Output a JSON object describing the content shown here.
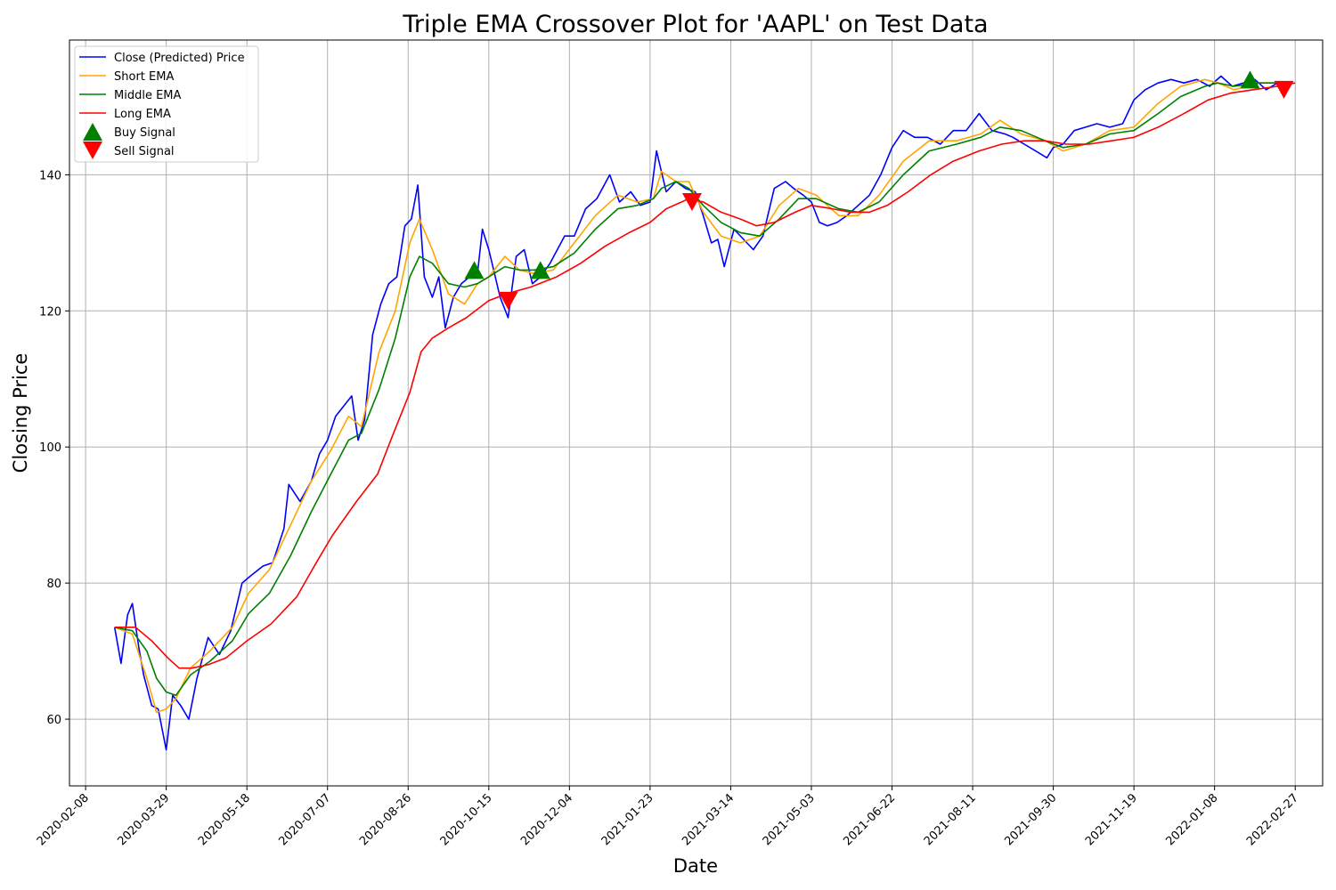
{
  "chart_data": {
    "type": "line",
    "title": "Triple EMA Crossover Plot for 'AAPL' on Test Data",
    "xlabel": "Date",
    "ylabel": "Closing Price",
    "x_ticks": [
      "2020-02-08",
      "2020-03-29",
      "2020-05-18",
      "2020-07-07",
      "2020-08-26",
      "2020-10-15",
      "2020-12-04",
      "2021-01-23",
      "2021-03-14",
      "2021-05-03",
      "2021-06-22",
      "2021-08-11",
      "2021-09-30",
      "2021-11-19",
      "2022-01-08",
      "2022-02-27"
    ],
    "y_ticks": [
      60,
      80,
      100,
      120,
      140
    ],
    "xlim": [
      "2020-01-29",
      "2022-03-16"
    ],
    "ylim": [
      50.2,
      159.8
    ],
    "grid": true,
    "legend_position": "top-left",
    "colors": {
      "close": "#0000ff",
      "short": "#ffa500",
      "middle": "#008000",
      "long": "#ff0000",
      "buy": "#008000",
      "sell": "#ff0000"
    },
    "series": [
      {
        "name": "Close (Predicted) Price",
        "x": [
          "2020-02-26",
          "2020-03-01",
          "2020-03-05",
          "2020-03-08",
          "2020-03-12",
          "2020-03-15",
          "2020-03-20",
          "2020-03-24",
          "2020-03-29",
          "2020-04-02",
          "2020-04-07",
          "2020-04-12",
          "2020-04-17",
          "2020-04-24",
          "2020-05-01",
          "2020-05-08",
          "2020-05-15",
          "2020-05-20",
          "2020-05-28",
          "2020-06-03",
          "2020-06-10",
          "2020-06-13",
          "2020-06-20",
          "2020-06-27",
          "2020-07-02",
          "2020-07-07",
          "2020-07-12",
          "2020-07-17",
          "2020-07-22",
          "2020-07-26",
          "2020-07-30",
          "2020-08-04",
          "2020-08-09",
          "2020-08-14",
          "2020-08-19",
          "2020-08-24",
          "2020-08-28",
          "2020-09-01",
          "2020-09-05",
          "2020-09-10",
          "2020-09-14",
          "2020-09-18",
          "2020-09-23",
          "2020-09-28",
          "2020-10-03",
          "2020-10-08",
          "2020-10-11",
          "2020-10-15",
          "2020-10-19",
          "2020-10-22",
          "2020-10-27",
          "2020-11-01",
          "2020-11-06",
          "2020-11-11",
          "2020-11-16",
          "2020-11-22",
          "2020-12-01",
          "2020-12-07",
          "2020-12-14",
          "2020-12-21",
          "2020-12-29",
          "2021-01-04",
          "2021-01-11",
          "2021-01-17",
          "2021-01-23",
          "2021-01-27",
          "2021-02-02",
          "2021-02-08",
          "2021-02-14",
          "2021-02-20",
          "2021-02-25",
          "2021-03-02",
          "2021-03-06",
          "2021-03-10",
          "2021-03-16",
          "2021-03-22",
          "2021-03-28",
          "2021-04-03",
          "2021-04-10",
          "2021-04-17",
          "2021-04-22",
          "2021-04-28",
          "2021-05-03",
          "2021-05-08",
          "2021-05-13",
          "2021-05-19",
          "2021-05-25",
          "2021-06-01",
          "2021-06-08",
          "2021-06-15",
          "2021-06-22",
          "2021-06-29",
          "2021-07-06",
          "2021-07-14",
          "2021-07-22",
          "2021-07-30",
          "2021-08-07",
          "2021-08-15",
          "2021-08-23",
          "2021-08-31",
          "2021-09-05",
          "2021-09-12",
          "2021-09-19",
          "2021-09-26",
          "2021-09-30",
          "2021-10-06",
          "2021-10-13",
          "2021-10-20",
          "2021-10-27",
          "2021-11-04",
          "2021-11-12",
          "2021-11-19",
          "2021-11-26",
          "2021-12-04",
          "2021-12-12",
          "2021-12-20",
          "2021-12-28",
          "2022-01-05",
          "2022-01-12",
          "2022-01-19",
          "2022-01-26",
          "2022-02-02",
          "2022-02-09",
          "2022-02-16",
          "2022-02-21",
          "2022-02-25"
        ],
        "values": [
          73.5,
          68.2,
          75.3,
          77.0,
          70.5,
          66.5,
          62.0,
          61.5,
          55.5,
          63.5,
          62.0,
          60.0,
          66.0,
          72.0,
          69.5,
          73.0,
          80.0,
          81.0,
          82.5,
          83.0,
          88.0,
          94.5,
          92.0,
          95.0,
          99.0,
          101.0,
          104.5,
          106.0,
          107.5,
          101.0,
          104.0,
          116.5,
          121.0,
          124.0,
          125.0,
          132.5,
          133.5,
          138.5,
          125.0,
          122.0,
          125.0,
          117.5,
          122.0,
          124.0,
          125.0,
          125.5,
          132.0,
          129.0,
          125.0,
          122.0,
          119.0,
          128.0,
          129.0,
          124.0,
          125.0,
          127.0,
          131.0,
          131.0,
          135.0,
          136.5,
          140.0,
          136.0,
          137.5,
          135.5,
          136.0,
          143.5,
          137.5,
          139.0,
          138.0,
          137.5,
          134.0,
          130.0,
          130.5,
          126.5,
          132.0,
          130.5,
          129.0,
          131.0,
          138.0,
          139.0,
          138.0,
          137.0,
          136.0,
          133.0,
          132.5,
          133.0,
          134.0,
          135.5,
          137.0,
          140.0,
          144.0,
          146.5,
          145.5,
          145.5,
          144.5,
          146.5,
          146.5,
          149.0,
          146.5,
          146.0,
          145.5,
          144.5,
          143.5,
          142.5,
          144.0,
          144.5,
          146.5,
          147.0,
          147.5,
          147.0,
          147.5,
          151.0,
          152.5,
          153.5,
          154.0,
          153.5,
          154.0,
          153.0,
          154.5,
          153.0,
          153.5,
          154.0,
          152.5,
          153.5,
          152.0,
          153.5
        ]
      },
      {
        "name": "Short EMA",
        "x": [
          "2020-02-26",
          "2020-03-08",
          "2020-03-17",
          "2020-03-23",
          "2020-03-29",
          "2020-04-04",
          "2020-04-13",
          "2020-04-25",
          "2020-05-09",
          "2020-05-19",
          "2020-06-01",
          "2020-06-14",
          "2020-06-27",
          "2020-07-09",
          "2020-07-20",
          "2020-07-28",
          "2020-08-08",
          "2020-08-18",
          "2020-08-27",
          "2020-09-02",
          "2020-09-10",
          "2020-09-20",
          "2020-09-30",
          "2020-10-08",
          "2020-10-15",
          "2020-10-25",
          "2020-11-03",
          "2020-11-12",
          "2020-11-24",
          "2020-12-07",
          "2020-12-20",
          "2021-01-03",
          "2021-01-15",
          "2021-01-25",
          "2021-01-30",
          "2021-02-08",
          "2021-02-16",
          "2021-02-25",
          "2021-03-08",
          "2021-03-20",
          "2021-04-01",
          "2021-04-13",
          "2021-04-25",
          "2021-05-06",
          "2021-05-20",
          "2021-06-01",
          "2021-06-14",
          "2021-06-29",
          "2021-07-15",
          "2021-08-01",
          "2021-08-16",
          "2021-08-28",
          "2021-09-10",
          "2021-09-25",
          "2021-10-06",
          "2021-10-20",
          "2021-11-04",
          "2021-11-19",
          "2021-12-04",
          "2021-12-18",
          "2022-01-02",
          "2022-01-10",
          "2022-01-20",
          "2022-02-05",
          "2022-02-25"
        ],
        "values": [
          73.5,
          72.5,
          66.0,
          61.0,
          61.5,
          63.0,
          67.5,
          70.0,
          73.5,
          78.5,
          82.0,
          88.5,
          95.0,
          99.5,
          104.5,
          103.0,
          114.0,
          120.0,
          130.0,
          133.5,
          129.0,
          122.5,
          121.0,
          124.0,
          125.0,
          128.0,
          126.0,
          125.5,
          126.0,
          130.0,
          134.0,
          137.0,
          136.0,
          136.5,
          140.5,
          139.0,
          139.0,
          134.5,
          131.0,
          130.0,
          131.0,
          135.5,
          138.0,
          137.0,
          134.0,
          134.0,
          137.0,
          142.0,
          145.0,
          145.0,
          146.0,
          148.0,
          146.0,
          145.0,
          143.5,
          144.5,
          146.5,
          147.0,
          150.5,
          153.0,
          154.0,
          153.5,
          152.5,
          153.5,
          153.5
        ]
      },
      {
        "name": "Middle EMA",
        "x": [
          "2020-02-26",
          "2020-03-08",
          "2020-03-17",
          "2020-03-23",
          "2020-03-29",
          "2020-04-04",
          "2020-04-13",
          "2020-04-25",
          "2020-05-09",
          "2020-05-19",
          "2020-06-01",
          "2020-06-14",
          "2020-06-27",
          "2020-07-09",
          "2020-07-20",
          "2020-07-28",
          "2020-08-08",
          "2020-08-18",
          "2020-08-27",
          "2020-09-02",
          "2020-09-10",
          "2020-09-20",
          "2020-09-30",
          "2020-10-08",
          "2020-10-15",
          "2020-10-25",
          "2020-11-03",
          "2020-11-12",
          "2020-11-24",
          "2020-12-07",
          "2020-12-20",
          "2021-01-03",
          "2021-01-15",
          "2021-01-25",
          "2021-01-30",
          "2021-02-08",
          "2021-02-16",
          "2021-02-25",
          "2021-03-08",
          "2021-03-20",
          "2021-04-01",
          "2021-04-13",
          "2021-04-25",
          "2021-05-06",
          "2021-05-20",
          "2021-06-01",
          "2021-06-14",
          "2021-06-29",
          "2021-07-15",
          "2021-08-01",
          "2021-08-16",
          "2021-08-28",
          "2021-09-10",
          "2021-09-25",
          "2021-10-06",
          "2021-10-20",
          "2021-11-04",
          "2021-11-19",
          "2021-12-04",
          "2021-12-18",
          "2022-01-02",
          "2022-01-10",
          "2022-01-20",
          "2022-02-05",
          "2022-02-25"
        ],
        "values": [
          73.5,
          73.0,
          70.0,
          66.0,
          64.0,
          63.5,
          66.5,
          68.5,
          71.5,
          75.5,
          78.5,
          84.0,
          90.5,
          96.0,
          101.0,
          102.0,
          108.5,
          116.0,
          125.0,
          128.0,
          127.0,
          124.0,
          123.5,
          124.0,
          125.0,
          126.5,
          126.0,
          126.0,
          126.5,
          128.5,
          132.0,
          135.0,
          135.5,
          136.5,
          138.0,
          139.0,
          138.0,
          135.5,
          133.0,
          131.5,
          131.0,
          133.5,
          136.5,
          136.5,
          135.0,
          134.5,
          136.0,
          140.0,
          143.5,
          144.5,
          145.5,
          147.0,
          146.5,
          145.0,
          144.0,
          144.5,
          146.0,
          146.5,
          149.0,
          151.5,
          153.0,
          153.5,
          153.0,
          153.5,
          153.5
        ]
      },
      {
        "name": "Long EMA",
        "x": [
          "2020-02-26",
          "2020-03-10",
          "2020-03-20",
          "2020-03-30",
          "2020-04-06",
          "2020-04-14",
          "2020-04-24",
          "2020-05-05",
          "2020-05-18",
          "2020-06-02",
          "2020-06-18",
          "2020-06-30",
          "2020-07-10",
          "2020-07-25",
          "2020-08-07",
          "2020-08-16",
          "2020-08-27",
          "2020-09-03",
          "2020-09-10",
          "2020-09-20",
          "2020-10-01",
          "2020-10-15",
          "2020-10-26",
          "2020-11-10",
          "2020-11-26",
          "2020-12-11",
          "2020-12-26",
          "2021-01-10",
          "2021-01-23",
          "2021-02-02",
          "2021-02-16",
          "2021-02-25",
          "2021-03-08",
          "2021-03-20",
          "2021-03-30",
          "2021-04-10",
          "2021-04-23",
          "2021-05-03",
          "2021-05-16",
          "2021-05-27",
          "2021-06-08",
          "2021-06-19",
          "2021-07-02",
          "2021-07-16",
          "2021-07-30",
          "2021-08-15",
          "2021-08-29",
          "2021-09-12",
          "2021-09-25",
          "2021-10-08",
          "2021-10-22",
          "2021-11-05",
          "2021-11-19",
          "2021-12-04",
          "2021-12-20",
          "2022-01-04",
          "2022-01-18",
          "2022-02-01",
          "2022-02-16",
          "2022-02-27"
        ],
        "values": [
          73.5,
          73.5,
          71.5,
          69.0,
          67.5,
          67.5,
          68.0,
          69.0,
          71.5,
          74.0,
          78.0,
          83.0,
          87.0,
          92.0,
          96.0,
          101.5,
          108.0,
          114.0,
          116.0,
          117.5,
          119.0,
          121.5,
          122.5,
          123.5,
          125.0,
          127.0,
          129.5,
          131.5,
          133.0,
          135.0,
          136.5,
          136.0,
          134.5,
          133.5,
          132.5,
          133.0,
          134.5,
          135.5,
          135.0,
          134.5,
          134.5,
          135.5,
          137.5,
          140.0,
          142.0,
          143.5,
          144.5,
          145.0,
          145.0,
          144.5,
          144.5,
          145.0,
          145.5,
          147.0,
          149.0,
          151.0,
          152.0,
          152.5,
          153.0,
          153.5
        ]
      }
    ],
    "buy_signals": [
      {
        "x": "2020-10-06",
        "y": 126.0
      },
      {
        "x": "2020-11-16",
        "y": 126.0
      },
      {
        "x": "2022-01-30",
        "y": 154.0
      }
    ],
    "sell_signals": [
      {
        "x": "2020-10-27",
        "y": 121.5
      },
      {
        "x": "2021-02-18",
        "y": 136.0
      },
      {
        "x": "2022-02-20",
        "y": 152.5
      }
    ],
    "legend": [
      "Close (Predicted) Price",
      "Short EMA",
      "Middle EMA",
      "Long EMA",
      "Buy Signal",
      "Sell Signal"
    ]
  }
}
